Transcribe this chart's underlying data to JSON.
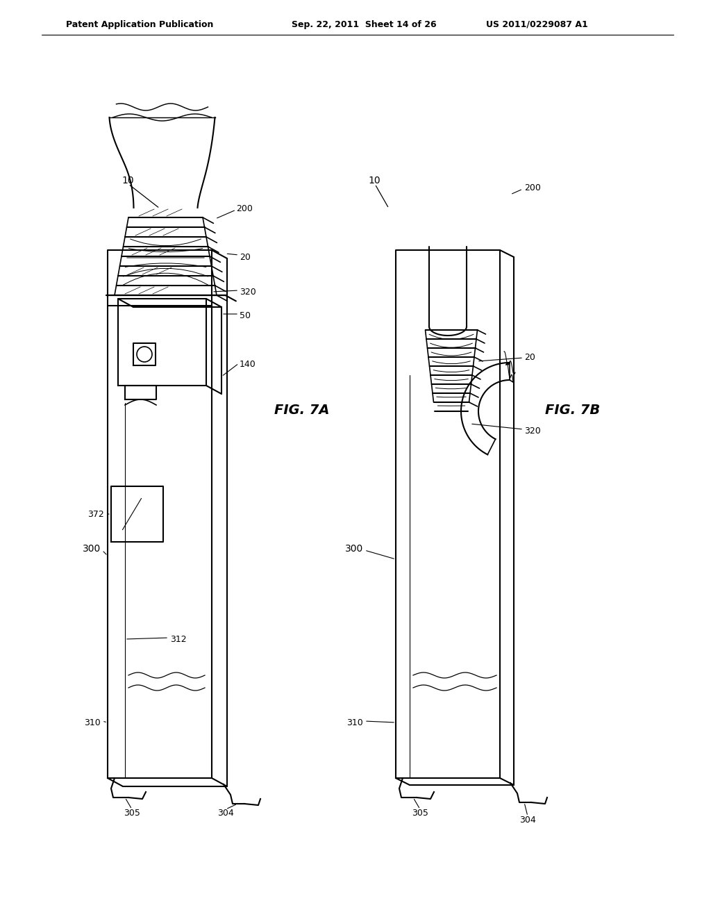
{
  "bg_color": "#ffffff",
  "header_left": "Patent Application Publication",
  "header_mid": "Sep. 22, 2011  Sheet 14 of 26",
  "header_right": "US 2011/0229087 A1",
  "fig7a_label": "FIG. 7A",
  "fig7b_label": "FIG. 7B",
  "line_color": "#000000",
  "line_width": 1.5,
  "text_color": "#000000"
}
